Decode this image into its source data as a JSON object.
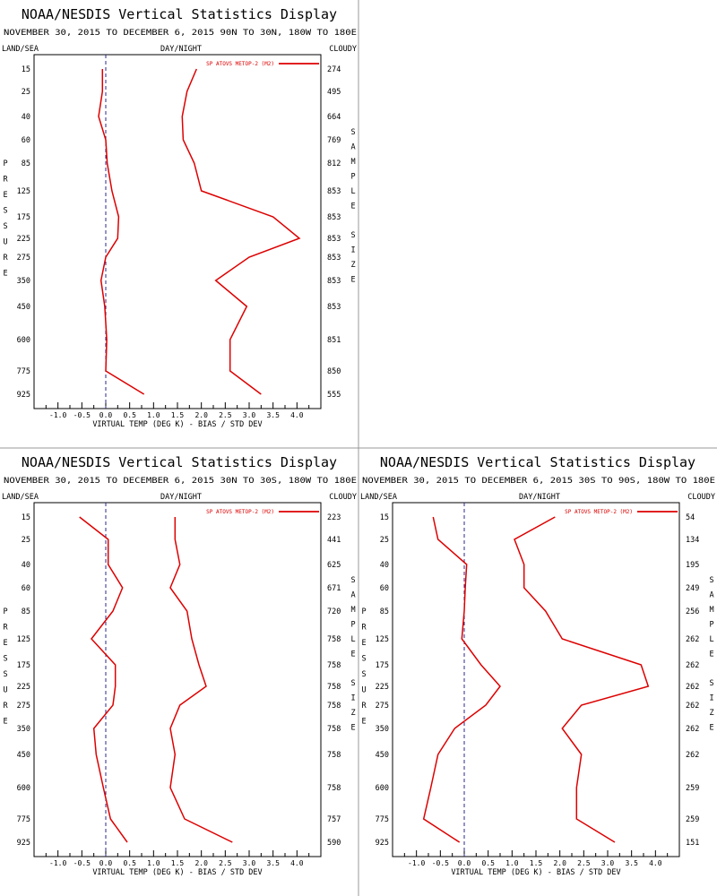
{
  "header_title": "NOAA/NESDIS Vertical Statistics Display",
  "labels": {
    "land_sea": "LAND/SEA",
    "day_night": "DAY/NIGHT",
    "cloudy": "CLOUDY",
    "pressure": "PRESSURE",
    "sample_size": "SAMPLE SIZE",
    "xlabel": "VIRTUAL TEMP (DEG K) - BIAS / STD DEV",
    "legend": "SP ATOVS METOP-2 (M2)"
  },
  "colors": {
    "series": "#dd0000",
    "text": "#000000",
    "zero_line": "#2a2a8c",
    "divider": "#999999"
  },
  "chart_data": [
    {
      "type": "line",
      "title": "NOAA/NESDIS Vertical Statistics Display",
      "subtitle": "NOVEMBER 30, 2015 TO DECEMBER 6, 2015 90N TO 30N, 180W TO 180E",
      "xlabel": "VIRTUAL TEMP (DEG K) - BIAS / STD DEV",
      "ylabel": "PRESSURE",
      "ylabel_right": "SAMPLE SIZE",
      "xlim": [
        -1.5,
        4.5
      ],
      "xticks": [
        "-1.0",
        "-0.5",
        "0.0",
        "0.5",
        "1.0",
        "1.5",
        "2.0",
        "2.5",
        "3.0",
        "3.5",
        "4.0"
      ],
      "pressure_levels": [
        15,
        25,
        40,
        60,
        85,
        125,
        175,
        225,
        275,
        350,
        450,
        600,
        775,
        925
      ],
      "sample_size": [
        274,
        495,
        664,
        769,
        812,
        853,
        853,
        853,
        853,
        853,
        853,
        851,
        850,
        555
      ],
      "series": [
        {
          "name": "SP ATOVS METOP-2 (M2)",
          "kind": "bias",
          "values": [
            -0.07,
            -0.07,
            -0.15,
            0.0,
            0.03,
            0.13,
            0.27,
            0.25,
            0.0,
            -0.1,
            -0.02,
            0.02,
            0.0,
            0.8
          ]
        },
        {
          "name": "SP ATOVS METOP-2 (M2)",
          "kind": "std_dev",
          "values": [
            1.9,
            1.7,
            1.6,
            1.62,
            1.85,
            2.0,
            3.5,
            4.05,
            3.0,
            2.3,
            2.95,
            2.6,
            2.6,
            3.25
          ]
        }
      ]
    },
    {
      "type": "line",
      "title": "NOAA/NESDIS Vertical Statistics Display",
      "subtitle": "NOVEMBER 30, 2015 TO DECEMBER 6, 2015 30N TO 30S, 180W TO 180E",
      "xlabel": "VIRTUAL TEMP (DEG K) - BIAS / STD DEV",
      "ylabel": "PRESSURE",
      "ylabel_right": "SAMPLE SIZE",
      "xlim": [
        -1.5,
        4.5
      ],
      "xticks": [
        "-1.0",
        "-0.5",
        "0.0",
        "0.5",
        "1.0",
        "1.5",
        "2.0",
        "2.5",
        "3.0",
        "3.5",
        "4.0"
      ],
      "pressure_levels": [
        15,
        25,
        40,
        60,
        85,
        125,
        175,
        225,
        275,
        350,
        450,
        600,
        775,
        925
      ],
      "sample_size": [
        223,
        441,
        625,
        671,
        720,
        758,
        758,
        758,
        758,
        758,
        758,
        758,
        757,
        590
      ],
      "series": [
        {
          "name": "SP ATOVS METOP-2 (M2)",
          "kind": "bias",
          "values": [
            -0.55,
            0.05,
            0.05,
            0.35,
            0.15,
            -0.3,
            0.2,
            0.2,
            0.15,
            -0.25,
            -0.2,
            -0.05,
            0.1,
            0.45
          ]
        },
        {
          "name": "SP ATOVS METOP-2 (M2)",
          "kind": "std_dev",
          "values": [
            1.45,
            1.45,
            1.55,
            1.35,
            1.7,
            1.8,
            1.95,
            2.1,
            1.55,
            1.35,
            1.45,
            1.35,
            1.65,
            2.65
          ]
        }
      ]
    },
    {
      "type": "line",
      "title": "NOAA/NESDIS Vertical Statistics Display",
      "subtitle": "NOVEMBER 30, 2015 TO DECEMBER 6, 2015 30S TO 90S, 180W TO 180E",
      "xlabel": "VIRTUAL TEMP (DEG K) - BIAS / STD DEV",
      "ylabel": "PRESSURE",
      "ylabel_right": "SAMPLE SIZE",
      "xlim": [
        -1.5,
        4.5
      ],
      "xticks": [
        "-1.0",
        "-0.5",
        "0.0",
        "0.5",
        "1.0",
        "1.5",
        "2.0",
        "2.5",
        "3.0",
        "3.5",
        "4.0"
      ],
      "pressure_levels": [
        15,
        25,
        40,
        60,
        85,
        125,
        175,
        225,
        275,
        350,
        450,
        600,
        775,
        925
      ],
      "sample_size": [
        54,
        134,
        195,
        249,
        256,
        262,
        262,
        262,
        262,
        262,
        262,
        259,
        259,
        151
      ],
      "series": [
        {
          "name": "SP ATOVS METOP-2 (M2)",
          "kind": "bias",
          "values": [
            -0.65,
            -0.55,
            0.05,
            0.02,
            0.0,
            -0.05,
            0.35,
            0.75,
            0.45,
            -0.2,
            -0.55,
            -0.7,
            -0.85,
            -0.1
          ]
        },
        {
          "name": "SP ATOVS METOP-2 (M2)",
          "kind": "std_dev",
          "values": [
            1.9,
            1.05,
            1.25,
            1.25,
            1.7,
            2.05,
            3.7,
            3.85,
            2.45,
            2.05,
            2.45,
            2.35,
            2.35,
            3.15
          ]
        }
      ]
    }
  ]
}
